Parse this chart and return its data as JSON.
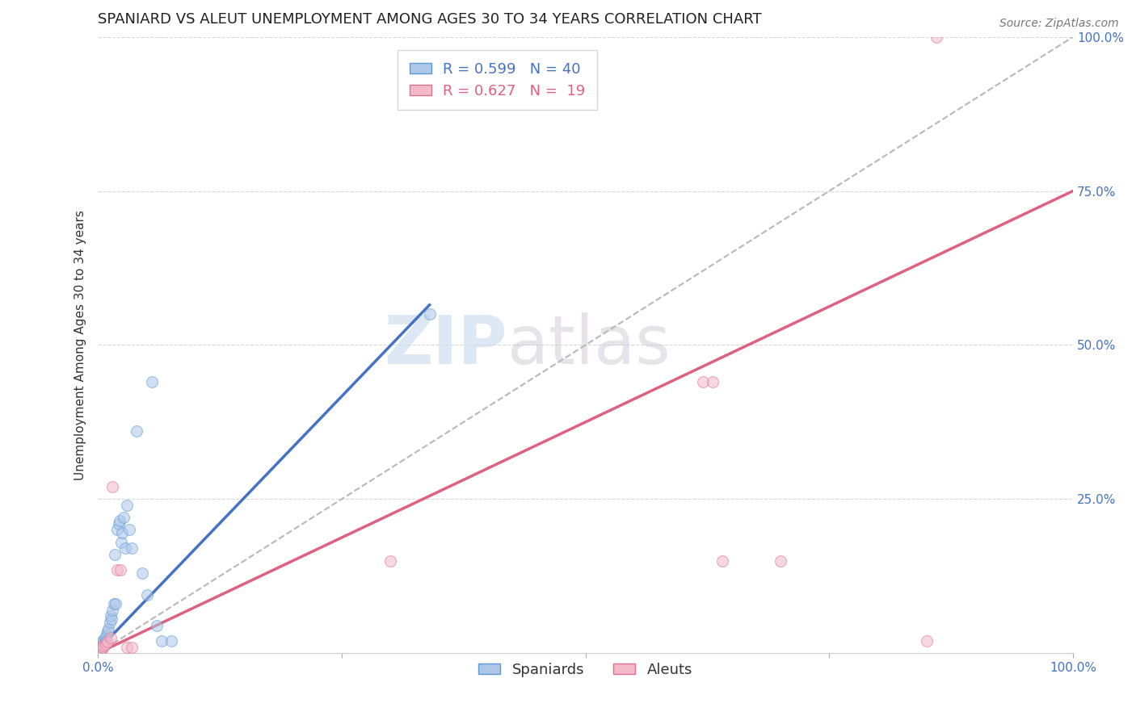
{
  "title": "SPANIARD VS ALEUT UNEMPLOYMENT AMONG AGES 30 TO 34 YEARS CORRELATION CHART",
  "source": "Source: ZipAtlas.com",
  "ylabel": "Unemployment Among Ages 30 to 34 years",
  "background_color": "#ffffff",
  "watermark_text": "ZIP",
  "watermark_text2": "atlas",
  "spaniards": {
    "label": "Spaniards",
    "color": "#aec6e8",
    "edge_color": "#5b9bd5",
    "line_color": "#4472c4",
    "R": 0.599,
    "N": 40,
    "points_x": [
      0.001,
      0.002,
      0.002,
      0.003,
      0.003,
      0.004,
      0.004,
      0.005,
      0.005,
      0.006,
      0.007,
      0.008,
      0.009,
      0.01,
      0.011,
      0.012,
      0.013,
      0.014,
      0.015,
      0.016,
      0.017,
      0.018,
      0.02,
      0.021,
      0.022,
      0.024,
      0.025,
      0.026,
      0.028,
      0.03,
      0.032,
      0.035,
      0.04,
      0.045,
      0.05,
      0.055,
      0.06,
      0.065,
      0.075,
      0.34
    ],
    "points_y": [
      0.005,
      0.008,
      0.01,
      0.012,
      0.015,
      0.008,
      0.018,
      0.01,
      0.02,
      0.015,
      0.025,
      0.02,
      0.03,
      0.035,
      0.04,
      0.05,
      0.06,
      0.055,
      0.07,
      0.08,
      0.16,
      0.08,
      0.2,
      0.21,
      0.215,
      0.18,
      0.195,
      0.22,
      0.17,
      0.24,
      0.2,
      0.17,
      0.36,
      0.13,
      0.095,
      0.44,
      0.045,
      0.02,
      0.02,
      0.55
    ],
    "line_x": [
      0.0,
      0.34
    ],
    "line_y": [
      0.005,
      0.565
    ]
  },
  "aleuts": {
    "label": "Aleuts",
    "color": "#f4b8c8",
    "edge_color": "#e07090",
    "line_color": "#e06080",
    "R": 0.627,
    "N": 19,
    "points_x": [
      0.002,
      0.003,
      0.005,
      0.006,
      0.008,
      0.01,
      0.013,
      0.015,
      0.02,
      0.023,
      0.03,
      0.035,
      0.3,
      0.62,
      0.63,
      0.64,
      0.7,
      0.85,
      0.86
    ],
    "points_y": [
      0.005,
      0.003,
      0.01,
      0.012,
      0.015,
      0.018,
      0.025,
      0.27,
      0.135,
      0.135,
      0.01,
      0.01,
      0.15,
      0.44,
      0.44,
      0.15,
      0.15,
      0.02,
      1.0
    ],
    "line_x": [
      0.0,
      1.0
    ],
    "line_y": [
      0.0,
      0.75
    ]
  },
  "diag_line_color": "#b8b8b8",
  "xlim": [
    0.0,
    1.0
  ],
  "ylim": [
    0.0,
    1.0
  ],
  "xticks": [
    0.0,
    0.25,
    0.5,
    0.75,
    1.0
  ],
  "xticklabels": [
    "0.0%",
    "",
    "",
    "",
    "100.0%"
  ],
  "yticks": [
    0.25,
    0.5,
    0.75,
    1.0
  ],
  "yticklabels": [
    "25.0%",
    "50.0%",
    "75.0%",
    "100.0%"
  ],
  "grid_color": "#d8d8d8",
  "title_fontsize": 13,
  "axis_label_fontsize": 11,
  "tick_fontsize": 11,
  "legend_fontsize": 13,
  "marker_size": 100,
  "marker_alpha": 0.55,
  "line_width": 2.5
}
